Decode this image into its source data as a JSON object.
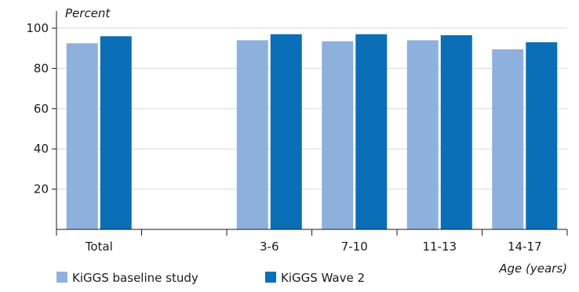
{
  "chart_data": {
    "type": "bar",
    "ylabel": "Percent",
    "xlabel": "Age (years)",
    "ylim": [
      0,
      100
    ],
    "yticks": [
      20,
      40,
      60,
      80,
      100
    ],
    "grid": true,
    "legend_position": "bottom-left",
    "categories": [
      "Total",
      "",
      "3-6",
      "7-10",
      "11-13",
      "14-17"
    ],
    "series": [
      {
        "name": "KiGGS baseline study",
        "color": "#8eb0dc",
        "values": [
          92.5,
          null,
          94,
          93.5,
          94,
          89.5
        ]
      },
      {
        "name": "KiGGS Wave 2",
        "color": "#0a6fb7",
        "values": [
          96,
          null,
          97,
          97,
          96.5,
          93
        ]
      }
    ]
  }
}
